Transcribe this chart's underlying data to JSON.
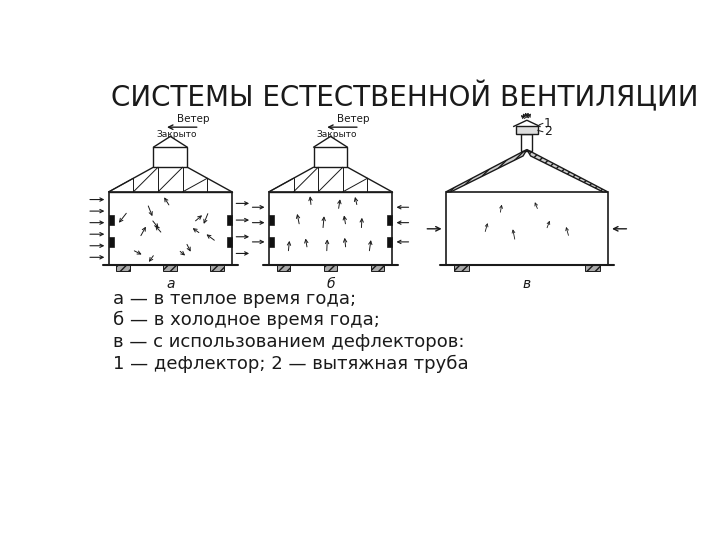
{
  "title": "СИСТЕМЫ ЕСТЕСТВЕННОЙ ВЕНТИЛЯЦИИ",
  "title_fontsize": 20,
  "caption_lines": [
    "а — в теплое время года;",
    "б — в холодное время года;",
    "в — с использованием дефлекторов:",
    "1 — дефлектор; 2 — вытяжная труба"
  ],
  "caption_fontsize": 13,
  "background_color": "#ffffff",
  "line_color": "#1a1a1a",
  "label_a": "а",
  "label_b": "б",
  "label_v": "в",
  "wind_label": "Ветер",
  "closed_label": "Закрыто"
}
